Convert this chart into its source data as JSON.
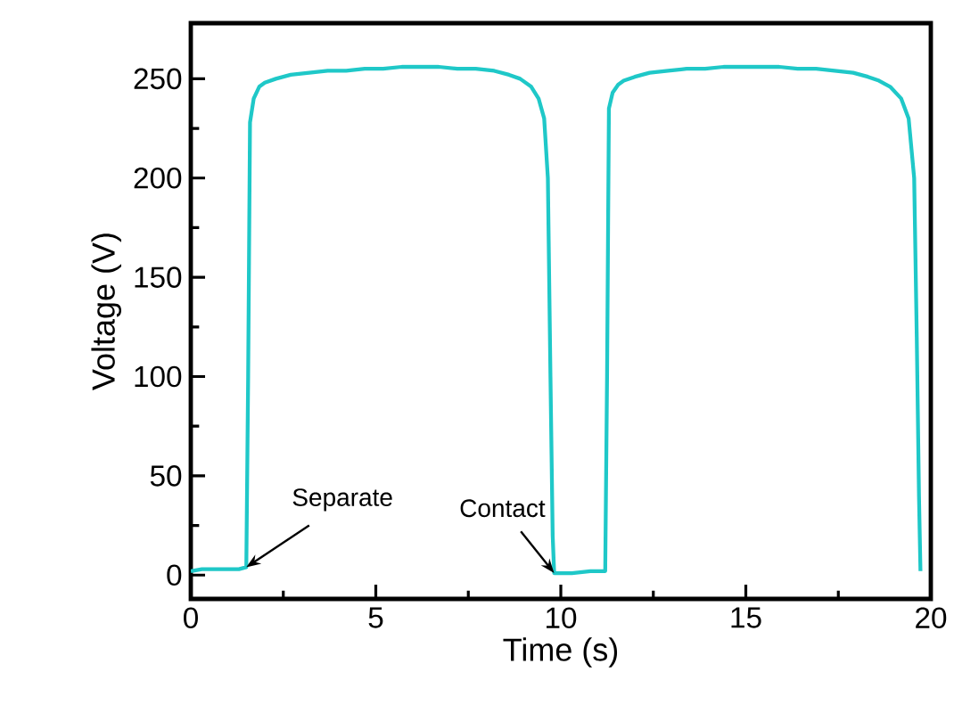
{
  "chart_data": {
    "type": "line",
    "xlabel": "Time (s)",
    "ylabel": "Voltage (V)",
    "xlim": [
      0,
      20
    ],
    "ylim": [
      -12,
      278
    ],
    "xticks": [
      0,
      5,
      10,
      15,
      20
    ],
    "yticks": [
      0,
      50,
      100,
      150,
      200,
      250
    ],
    "grid": false,
    "marker": "none",
    "line_style": "solid",
    "series": [
      {
        "color": "#1fc8c8",
        "x": [
          0,
          0.3,
          0.8,
          1.3,
          1.5,
          1.55,
          1.6,
          1.7,
          1.85,
          2.0,
          2.3,
          2.7,
          3.2,
          3.7,
          4.2,
          4.7,
          5.2,
          5.7,
          6.2,
          6.7,
          7.2,
          7.7,
          8.2,
          8.6,
          8.9,
          9.2,
          9.4,
          9.55,
          9.65,
          9.72,
          9.78,
          9.82,
          10.3,
          10.8,
          11.2,
          11.25,
          11.3,
          11.4,
          11.55,
          11.7,
          12.0,
          12.4,
          12.9,
          13.4,
          13.9,
          14.4,
          14.9,
          15.4,
          15.9,
          16.4,
          16.9,
          17.4,
          17.9,
          18.3,
          18.6,
          18.9,
          19.2,
          19.4,
          19.55,
          19.62,
          19.68,
          19.72
        ],
        "values": [
          2,
          3,
          3,
          3,
          4,
          100,
          228,
          240,
          246,
          248,
          250,
          252,
          253,
          254,
          254,
          255,
          255,
          256,
          256,
          256,
          255,
          255,
          254,
          252,
          250,
          246,
          240,
          230,
          200,
          100,
          20,
          1,
          1,
          2,
          2,
          100,
          235,
          243,
          247,
          249,
          251,
          253,
          254,
          255,
          255,
          256,
          256,
          256,
          256,
          255,
          255,
          254,
          253,
          251,
          249,
          246,
          240,
          230,
          200,
          120,
          40,
          2
        ]
      }
    ],
    "annotations": [
      {
        "text": "Separate",
        "x": 1.5,
        "y": 4
      },
      {
        "text": "Contact",
        "x": 9.82,
        "y": 1
      }
    ]
  }
}
